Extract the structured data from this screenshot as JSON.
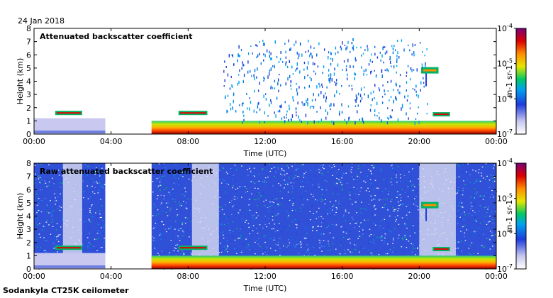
{
  "header": {
    "date": "24 Jan 2018"
  },
  "footer": {
    "site": "Sodankyla CT25K ceilometer"
  },
  "chart_data": [
    {
      "type": "heatmap",
      "title": "Attenuated backscatter coefficient",
      "xlabel": "Time (UTC)",
      "ylabel": "Height (km)",
      "xlim": [
        0,
        24
      ],
      "ylim": [
        0,
        8
      ],
      "xticks": [
        "00:00",
        "04:00",
        "08:00",
        "12:00",
        "16:00",
        "20:00",
        "00:00"
      ],
      "yticks": [
        "0",
        "1",
        "2",
        "3",
        "4",
        "5",
        "6",
        "7",
        "8"
      ],
      "colorbar": {
        "label": "m-1 sr-1",
        "ticks": [
          "10-7",
          "10-6",
          "10-5",
          "10-4"
        ],
        "scale": "log",
        "range": [
          1e-07,
          0.0001
        ]
      },
      "layers": [
        {
          "name": "boundary layer",
          "segments": [
            [
              0,
              3.7,
              1.2
            ],
            [
              6.1,
              24,
              0.35
            ]
          ]
        },
        {
          "name": "low cloud",
          "segments": [
            [
              1.1,
              2.5,
              1.6
            ],
            [
              7.5,
              9.0,
              1.6
            ],
            [
              20.7,
              21.6,
              1.5
            ]
          ]
        },
        {
          "name": "mid cloud",
          "segments": [
            [
              20.1,
              21.0,
              4.8
            ]
          ]
        }
      ],
      "data_gap_hours": [
        [
          3.7,
          6.1
        ]
      ]
    },
    {
      "type": "heatmap",
      "title": "Raw attenuated backscatter coefficient",
      "xlabel": "Time (UTC)",
      "ylabel": "Height (km)",
      "xlim": [
        0,
        24
      ],
      "ylim": [
        0,
        8
      ],
      "xticks": [
        "00:00",
        "04:00",
        "08:00",
        "12:00",
        "16:00",
        "20:00",
        "00:00"
      ],
      "yticks": [
        "0",
        "1",
        "2",
        "3",
        "4",
        "5",
        "6",
        "7",
        "8"
      ],
      "colorbar": {
        "label": "m-1 sr-1",
        "ticks": [
          "10-7",
          "10-6",
          "10-5",
          "10-4"
        ],
        "scale": "log",
        "range": [
          1e-07,
          0.0001
        ]
      },
      "layers": [
        {
          "name": "boundary layer",
          "segments": [
            [
              0,
              3.7,
              1.2
            ],
            [
              6.1,
              24,
              0.35
            ]
          ]
        },
        {
          "name": "low cloud",
          "segments": [
            [
              1.1,
              2.5,
              1.6
            ],
            [
              7.5,
              9.0,
              1.6
            ],
            [
              20.7,
              21.6,
              1.5
            ]
          ]
        },
        {
          "name": "mid cloud",
          "segments": [
            [
              20.1,
              21.0,
              4.8
            ]
          ]
        }
      ],
      "noise_segments": [
        [
          0,
          3.7
        ],
        [
          6.1,
          24
        ]
      ],
      "data_gap_hours": [
        [
          3.7,
          6.1
        ]
      ]
    }
  ]
}
